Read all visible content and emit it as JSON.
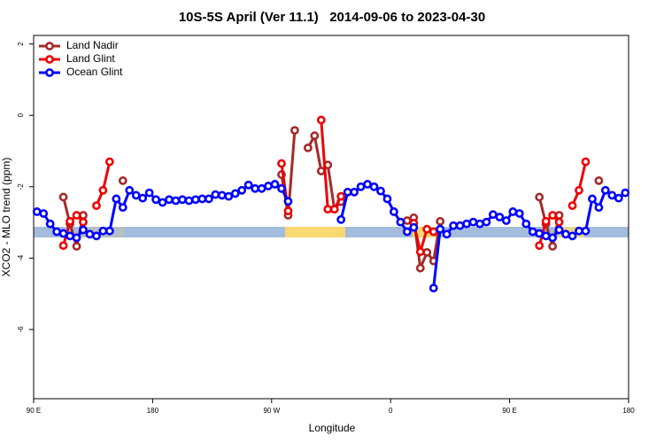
{
  "chart_data": {
    "type": "line",
    "title": "10S-5S April (Ver 11.1)   2014-09-06 to 2023-04-30",
    "x_label": "Longitude",
    "y_label": "XCO2 - MLO trend (ppm)",
    "x": [
      92.5,
      97.5,
      102.5,
      107.5,
      112.5,
      117.5,
      122.5,
      127.5,
      132.5,
      137.5,
      142.5,
      147.5,
      152.5,
      157.5,
      162.5,
      167.5,
      172.5,
      177.5,
      182.5,
      187.5,
      192.5,
      197.5,
      202.5,
      207.5,
      212.5,
      217.5,
      222.5,
      227.5,
      232.5,
      237.5,
      242.5,
      247.5,
      252.5,
      257.5,
      262.5,
      267.5,
      272.5,
      277.5,
      282.5,
      287.5,
      292.5,
      297.5,
      302.5,
      307.5,
      312.5,
      317.5,
      322.5,
      327.5,
      332.5,
      337.5,
      342.5,
      347.5,
      352.5,
      357.5,
      362.5,
      367.5,
      372.5,
      377.5,
      382.5,
      387.5,
      392.5,
      397.5,
      402.5,
      407.5,
      412.5,
      417.5,
      422.5,
      427.5,
      432.5,
      437.5,
      442.5,
      447.5,
      452.5,
      457.5,
      462.5,
      467.5,
      472.5,
      477.5,
      482.5,
      487.5,
      492.5,
      497.5,
      502.5,
      507.5,
      512.5,
      517.5,
      522.5,
      527.5,
      532.5,
      537.5
    ],
    "xlim": [
      90,
      540
    ],
    "xticks": [
      {
        "value": 90,
        "label": "90 E"
      },
      {
        "value": 180,
        "label": "180"
      },
      {
        "value": 270,
        "label": "90 W"
      },
      {
        "value": 360,
        "label": "0"
      },
      {
        "value": 450,
        "label": "90 E"
      },
      {
        "value": 540,
        "label": "180"
      }
    ],
    "ylim": [
      -7.94,
      2.24
    ],
    "yticks": [
      -6,
      -4,
      -2,
      0,
      2
    ],
    "legend": "topleft",
    "series": [
      {
        "name": "Land Nadir",
        "color": "#a52a2a",
        "values": [
          null,
          null,
          null,
          null,
          -2.29,
          -3.04,
          -3.67,
          -2.8,
          null,
          null,
          null,
          null,
          null,
          -1.83,
          null,
          null,
          null,
          null,
          null,
          null,
          null,
          null,
          null,
          null,
          null,
          null,
          null,
          null,
          null,
          null,
          null,
          null,
          null,
          null,
          null,
          null,
          null,
          -1.66,
          -2.8,
          -0.42,
          null,
          -0.91,
          -0.57,
          -1.56,
          -1.39,
          -2.63,
          -2.42,
          null,
          null,
          null,
          null,
          null,
          null,
          null,
          null,
          null,
          -2.95,
          -2.87,
          -4.28,
          -3.84,
          -4.08,
          -2.97,
          null,
          null,
          null,
          null,
          null,
          null,
          null,
          null,
          null,
          null,
          null,
          null,
          null,
          null,
          -2.29,
          -3.04,
          -3.67,
          -2.8,
          null,
          null,
          null,
          null,
          null,
          -1.83,
          null,
          null,
          null,
          null
        ]
      },
      {
        "name": "Land Glint",
        "color": "#ee0000",
        "values": [
          null,
          null,
          null,
          null,
          -3.65,
          -2.97,
          -2.8,
          -2.99,
          null,
          -2.53,
          -2.1,
          -1.3,
          null,
          null,
          null,
          null,
          null,
          null,
          null,
          null,
          null,
          null,
          null,
          null,
          null,
          null,
          null,
          null,
          null,
          null,
          null,
          null,
          null,
          null,
          null,
          null,
          null,
          -1.35,
          -2.68,
          null,
          null,
          null,
          null,
          -0.13,
          -2.63,
          -2.63,
          -2.27,
          null,
          null,
          null,
          null,
          null,
          null,
          null,
          null,
          null,
          null,
          -3.02,
          -3.82,
          -3.19,
          -3.26,
          null,
          null,
          null,
          null,
          null,
          null,
          null,
          null,
          null,
          null,
          null,
          null,
          null,
          null,
          null,
          -3.65,
          -2.97,
          -2.8,
          -2.99,
          null,
          -2.53,
          -2.1,
          -1.3,
          null,
          null,
          null,
          null,
          null,
          null
        ]
      },
      {
        "name": "Ocean Glint",
        "color": "#0000ff",
        "values": [
          -2.7,
          -2.75,
          -3.04,
          -3.26,
          -3.31,
          -3.38,
          -3.43,
          -3.21,
          -3.33,
          -3.38,
          -3.24,
          -3.24,
          -2.34,
          -2.58,
          -2.1,
          -2.24,
          -2.32,
          -2.17,
          -2.36,
          -2.44,
          -2.36,
          -2.39,
          -2.36,
          -2.39,
          -2.36,
          -2.34,
          -2.34,
          -2.22,
          -2.24,
          -2.27,
          -2.19,
          -2.1,
          -1.95,
          -2.05,
          -2.05,
          -1.98,
          -1.93,
          -2.05,
          -2.41,
          null,
          null,
          null,
          null,
          null,
          null,
          null,
          -2.92,
          -2.15,
          -2.15,
          -2.0,
          -1.93,
          -2.0,
          -2.12,
          -2.34,
          -2.7,
          -2.99,
          -3.26,
          -3.14,
          null,
          null,
          -4.84,
          -3.19,
          -3.33,
          -3.09,
          -3.09,
          -3.04,
          -2.99,
          -3.04,
          -2.99,
          -2.78,
          -2.85,
          -2.95,
          -2.7,
          -2.75,
          -3.04,
          -3.26,
          -3.31,
          -3.38,
          -3.43,
          -3.21,
          -3.33,
          -3.38,
          -3.24,
          -3.24,
          -2.34,
          -2.58,
          -2.1,
          -2.24,
          -2.32,
          -2.17
        ]
      }
    ]
  }
}
